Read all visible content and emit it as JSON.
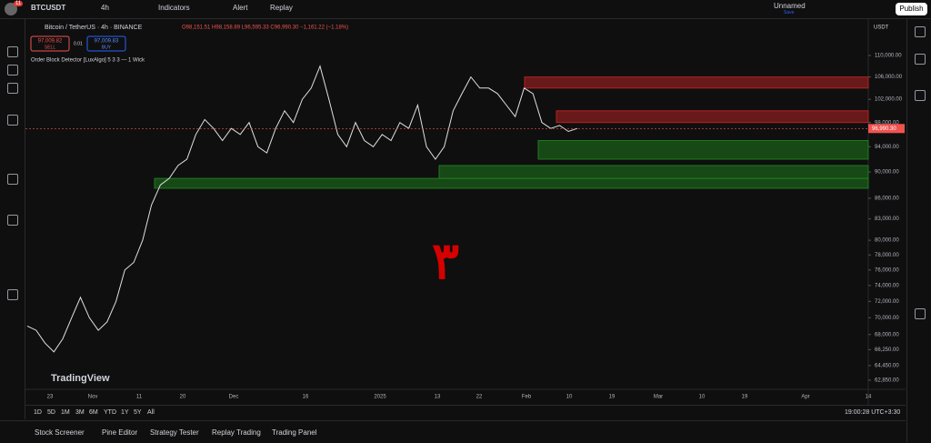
{
  "header": {
    "symbol": "BTCUSDT",
    "badge": "11",
    "interval": "4h",
    "indicators": "Indicators",
    "alert": "Alert",
    "replay": "Replay",
    "layout_name": "Unnamed",
    "layout_status": "Save",
    "publish": "Publish"
  },
  "legend": {
    "instrument": "Bitcoin / TetherUS · 4h · BINANCE",
    "ohlc": "O98,151.51 H98,158.89 L96,595.33 C96,990.30 −1,161.22 (−1.18%)",
    "sell_price": "97,009.82",
    "sell": "SELL",
    "spread": "0.01",
    "buy_price": "97,009.83",
    "buy": "BUY",
    "indicator": "Order Block Detector [LuxAlgo] 5 3 3 — 1 Wick"
  },
  "chart": {
    "currency": "USDT",
    "log_scale": true,
    "ylim": [
      61870,
      116940
    ],
    "yticks": [
      {
        "value": 110000,
        "label": "110,000.00"
      },
      {
        "value": 106000,
        "label": "106,000.00"
      },
      {
        "value": 102000,
        "label": "102,000.00"
      },
      {
        "value": 98000,
        "label": "98,000.00"
      },
      {
        "value": 94000,
        "label": "94,000.00"
      },
      {
        "value": 90000,
        "label": "90,000.00"
      },
      {
        "value": 86000,
        "label": "86,000.00"
      },
      {
        "value": 83000,
        "label": "83,000.00"
      },
      {
        "value": 80000,
        "label": "80,000.00"
      },
      {
        "value": 78000,
        "label": "78,000.00"
      },
      {
        "value": 76000,
        "label": "76,000.00"
      },
      {
        "value": 74000,
        "label": "74,000.00"
      },
      {
        "value": 72000,
        "label": "72,000.00"
      },
      {
        "value": 70000,
        "label": "70,000.00"
      },
      {
        "value": 68000,
        "label": "68,000.00"
      },
      {
        "value": 66250,
        "label": "66,250.00"
      },
      {
        "value": 64450,
        "label": "64,450.00"
      },
      {
        "value": 62850,
        "label": "62,850.00"
      }
    ],
    "last_price": {
      "value": 96990.3,
      "label": "96,990.30"
    },
    "price_color": "#e0e0e0",
    "closes": [
      69000,
      68500,
      67000,
      66000,
      67500,
      70000,
      72500,
      70000,
      68500,
      69500,
      72000,
      76000,
      77000,
      80000,
      85000,
      88000,
      89000,
      91000,
      92000,
      96000,
      98500,
      97000,
      95000,
      97000,
      96000,
      98000,
      94000,
      93000,
      97000,
      100000,
      98000,
      102000,
      104000,
      108000,
      102000,
      96000,
      94000,
      98000,
      95000,
      94000,
      96000,
      95000,
      98000,
      97000,
      101000,
      94000,
      92000,
      94000,
      100000,
      103000,
      106000,
      104000,
      104000,
      103000,
      101000,
      99000,
      104000,
      103000,
      98000,
      97000,
      97500,
      96500,
      97000
    ],
    "zones": [
      {
        "top": 106000,
        "bottom": 104000,
        "color": "#b22222"
      },
      {
        "top": 100000,
        "bottom": 98000,
        "color": "#b22222"
      },
      {
        "top": 95000,
        "bottom": 92000,
        "color": "#1f7a1f"
      },
      {
        "top": 91000,
        "bottom": 89000,
        "color": "#1f7a1f"
      },
      {
        "top": 89000,
        "bottom": 87500,
        "color": "#1f7a1f"
      }
    ],
    "watermark": "۳",
    "brand": "TradingView",
    "time_labels": [
      "23",
      "Nov",
      "11",
      "20",
      "Dec",
      "16",
      "2025",
      "13",
      "22",
      "Feb",
      "10",
      "19",
      "Mar",
      "10",
      "19",
      "Apr",
      "14"
    ]
  },
  "range_buttons": [
    "1D",
    "5D",
    "1M",
    "3M",
    "6M",
    "YTD",
    "1Y",
    "5Y",
    "All"
  ],
  "clock": "19:00:28 UTC+3:30",
  "tabs": [
    "Stock Screener",
    "Pine Editor",
    "Strategy Tester",
    "Replay Trading",
    "Trading Panel"
  ]
}
